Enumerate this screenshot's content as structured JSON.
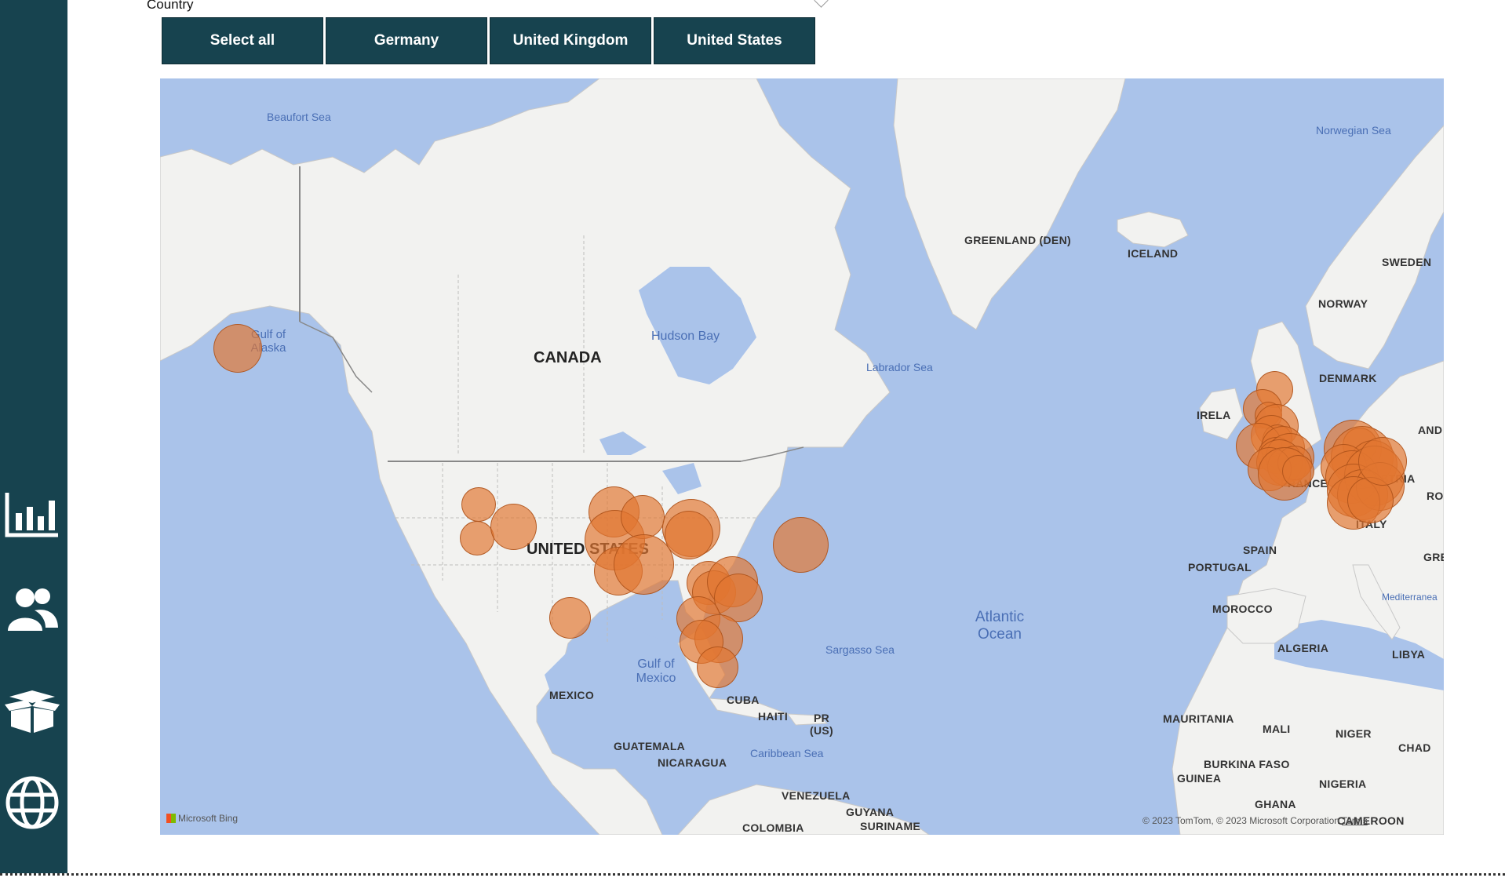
{
  "slicer": {
    "title": "Country",
    "options": [
      "Select all",
      "Germany",
      "United Kingdom",
      "United States"
    ]
  },
  "sidebar": {
    "icons": [
      "bar-chart-icon",
      "users-icon",
      "open-box-icon",
      "globe-icon"
    ]
  },
  "map": {
    "labels": {
      "greenland": "GREENLAND (DEN)",
      "iceland": "ICELAND",
      "sweden": "SWEDEN",
      "norway": "NORWAY",
      "denmark": "DENMARK",
      "ireland": "IRELA",
      "finland_partial": "AND",
      "france": "FRANCE",
      "austria": "STRIA",
      "romania_partial": "RO",
      "italy": "ITALY",
      "greece_partial": "GRE",
      "spain": "SPAIN",
      "portugal": "PORTUGAL",
      "morocco": "MOROCCO",
      "algeria": "ALGERIA",
      "libya": "LIBYA",
      "mauritania": "MAURITANIA",
      "mali": "MALI",
      "niger": "NIGER",
      "chad": "CHAD",
      "burkina": "BURKINA FASO",
      "guinea": "GUINEA",
      "nigeria": "NIGERIA",
      "ghana": "GHANA",
      "cameroon": "CAMEROON",
      "canada": "CANADA",
      "usa": "UNITED STATES",
      "mexico": "MEXICO",
      "cuba": "CUBA",
      "haiti": "HAITI",
      "pr": "PR (US)",
      "guatemala": "GUATEMALA",
      "nicaragua": "NICARAGUA",
      "venezuela": "VENEZUELA",
      "guyana": "GUYANA",
      "suriname": "SURINAME",
      "colombia": "COLOMBIA",
      "beaufort": "Beaufort Sea",
      "gulf_alaska": "Gulf of Alaska",
      "hudson": "Hudson Bay",
      "labrador": "Labrador Sea",
      "norwegian": "Norwegian Sea",
      "atlantic": "Atlantic Ocean",
      "sargasso": "Sargasso Sea",
      "gulf_mexico": "Gulf of Mexico",
      "caribbean": "Caribbean Sea",
      "mediterranean": "Mediterranea"
    },
    "attribution": "© 2023 TomTom, © 2023 Microsoft Corporation",
    "terms": "Terms",
    "bing": "Microsoft Bing",
    "bubble_color": "#e27630",
    "bubbles": [
      {
        "lon": -151.0,
        "lat": 61.5,
        "size": 1.0
      },
      {
        "lon": -116.5,
        "lat": 47.6,
        "size": 0.7
      },
      {
        "lon": -116.7,
        "lat": 44.0,
        "size": 0.7
      },
      {
        "lon": -111.5,
        "lat": 45.2,
        "size": 0.95
      },
      {
        "lon": -97.0,
        "lat": 46.8,
        "size": 1.05
      },
      {
        "lon": -96.9,
        "lat": 43.8,
        "size": 1.25
      },
      {
        "lon": -96.4,
        "lat": 40.2,
        "size": 1.0
      },
      {
        "lon": -93.0,
        "lat": 46.3,
        "size": 0.9
      },
      {
        "lon": -92.8,
        "lat": 41.0,
        "size": 1.25
      },
      {
        "lon": -86.0,
        "lat": 45.1,
        "size": 1.2
      },
      {
        "lon": -86.3,
        "lat": 44.3,
        "size": 1.0
      },
      {
        "lon": -83.5,
        "lat": 38.8,
        "size": 0.9
      },
      {
        "lon": -82.7,
        "lat": 37.6,
        "size": 0.9
      },
      {
        "lon": -80.1,
        "lat": 38.9,
        "size": 1.05
      },
      {
        "lon": -79.2,
        "lat": 37.0,
        "size": 1.0
      },
      {
        "lon": -85.0,
        "lat": 34.4,
        "size": 0.9
      },
      {
        "lon": -82.0,
        "lat": 31.7,
        "size": 1.0
      },
      {
        "lon": -84.5,
        "lat": 31.3,
        "size": 0.9
      },
      {
        "lon": -82.2,
        "lat": 27.9,
        "size": 0.85
      },
      {
        "lon": -103.4,
        "lat": 34.4,
        "size": 0.85
      },
      {
        "lon": -70.3,
        "lat": 43.2,
        "size": 1.15
      },
      {
        "lon": -2.4,
        "lat": 58.3,
        "size": 0.75
      },
      {
        "lon": -4.1,
        "lat": 56.7,
        "size": 0.8
      },
      {
        "lon": -3.3,
        "lat": 56.1,
        "size": 0.55
      },
      {
        "lon": -2.1,
        "lat": 55.2,
        "size": 0.9
      },
      {
        "lon": -2.8,
        "lat": 54.3,
        "size": 0.85
      },
      {
        "lon": -1.9,
        "lat": 54.0,
        "size": 0.6
      },
      {
        "lon": -4.6,
        "lat": 53.4,
        "size": 0.95
      },
      {
        "lon": -1.2,
        "lat": 53.2,
        "size": 0.9
      },
      {
        "lon": -2.1,
        "lat": 52.5,
        "size": 0.75
      },
      {
        "lon": -0.2,
        "lat": 52.3,
        "size": 1.0
      },
      {
        "lon": -1.7,
        "lat": 51.8,
        "size": 0.95
      },
      {
        "lon": -0.6,
        "lat": 51.4,
        "size": 0.8
      },
      {
        "lon": 0.5,
        "lat": 51.8,
        "size": 0.7
      },
      {
        "lon": -3.1,
        "lat": 51.2,
        "size": 0.9
      },
      {
        "lon": -1.0,
        "lat": 50.7,
        "size": 1.1
      },
      {
        "lon": 1.0,
        "lat": 51.0,
        "size": 0.65
      },
      {
        "lon": 8.8,
        "lat": 53.1,
        "size": 1.2
      },
      {
        "lon": 9.8,
        "lat": 53.5,
        "size": 0.7
      },
      {
        "lon": 10.2,
        "lat": 52.3,
        "size": 1.3
      },
      {
        "lon": 11.8,
        "lat": 51.6,
        "size": 1.0
      },
      {
        "lon": 7.5,
        "lat": 51.4,
        "size": 0.95
      },
      {
        "lon": 8.7,
        "lat": 50.4,
        "size": 1.1
      },
      {
        "lon": 11.9,
        "lat": 50.5,
        "size": 1.25
      },
      {
        "lon": 9.0,
        "lat": 49.1,
        "size": 1.1
      },
      {
        "lon": 10.3,
        "lat": 48.6,
        "size": 1.05
      },
      {
        "lon": 12.8,
        "lat": 49.5,
        "size": 1.0
      },
      {
        "lon": 8.9,
        "lat": 47.8,
        "size": 1.1
      },
      {
        "lon": 11.4,
        "lat": 48.1,
        "size": 0.95
      },
      {
        "lon": 13.1,
        "lat": 51.9,
        "size": 1.0
      }
    ]
  }
}
